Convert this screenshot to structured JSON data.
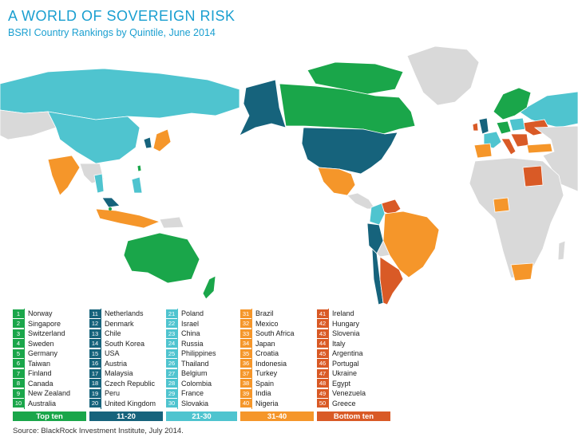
{
  "header": {
    "title": "A WORLD OF SOVEREIGN RISK",
    "subtitle": "BSRI Country Rankings by Quintile, June 2014"
  },
  "colors": {
    "top_ten": "#1aa64a",
    "q11_20": "#16637c",
    "q21_30": "#4fc4cf",
    "q31_40": "#f5962a",
    "bottom_ten": "#d95a26",
    "no_data": "#d9d9d9"
  },
  "legend": [
    {
      "label": "Top ten",
      "color_key": "top_ten",
      "items": [
        {
          "rank": "1",
          "country": "Norway"
        },
        {
          "rank": "2",
          "country": "Singapore"
        },
        {
          "rank": "3",
          "country": "Switzerland"
        },
        {
          "rank": "4",
          "country": "Sweden"
        },
        {
          "rank": "5",
          "country": "Germany"
        },
        {
          "rank": "6",
          "country": "Taiwan"
        },
        {
          "rank": "7",
          "country": "Finland"
        },
        {
          "rank": "8",
          "country": "Canada"
        },
        {
          "rank": "9",
          "country": "New Zealand"
        },
        {
          "rank": "10",
          "country": "Australia"
        }
      ]
    },
    {
      "label": "11-20",
      "color_key": "q11_20",
      "items": [
        {
          "rank": "11",
          "country": "Netherlands"
        },
        {
          "rank": "12",
          "country": "Denmark"
        },
        {
          "rank": "13",
          "country": "Chile"
        },
        {
          "rank": "14",
          "country": "South Korea"
        },
        {
          "rank": "15",
          "country": "USA"
        },
        {
          "rank": "16",
          "country": "Austria"
        },
        {
          "rank": "17",
          "country": "Malaysia"
        },
        {
          "rank": "18",
          "country": "Czech Republic"
        },
        {
          "rank": "19",
          "country": "Peru"
        },
        {
          "rank": "20",
          "country": "United Kingdom"
        }
      ]
    },
    {
      "label": "21-30",
      "color_key": "q21_30",
      "items": [
        {
          "rank": "21",
          "country": "Poland"
        },
        {
          "rank": "22",
          "country": "Israel"
        },
        {
          "rank": "23",
          "country": "China"
        },
        {
          "rank": "24",
          "country": "Russia"
        },
        {
          "rank": "25",
          "country": "Philippines"
        },
        {
          "rank": "26",
          "country": "Thailand"
        },
        {
          "rank": "27",
          "country": "Belgium"
        },
        {
          "rank": "28",
          "country": "Colombia"
        },
        {
          "rank": "29",
          "country": "France"
        },
        {
          "rank": "30",
          "country": "Slovakia"
        }
      ]
    },
    {
      "label": "31-40",
      "color_key": "q31_40",
      "items": [
        {
          "rank": "31",
          "country": "Brazil"
        },
        {
          "rank": "32",
          "country": "Mexico"
        },
        {
          "rank": "33",
          "country": "South Africa"
        },
        {
          "rank": "34",
          "country": "Japan"
        },
        {
          "rank": "35",
          "country": "Croatia"
        },
        {
          "rank": "36",
          "country": "Indonesia"
        },
        {
          "rank": "37",
          "country": "Turkey"
        },
        {
          "rank": "38",
          "country": "Spain"
        },
        {
          "rank": "39",
          "country": "India"
        },
        {
          "rank": "40",
          "country": "Nigeria"
        }
      ]
    },
    {
      "label": "Bottom ten",
      "color_key": "bottom_ten",
      "items": [
        {
          "rank": "41",
          "country": "Ireland"
        },
        {
          "rank": "42",
          "country": "Hungary"
        },
        {
          "rank": "43",
          "country": "Slovenia"
        },
        {
          "rank": "44",
          "country": "Italy"
        },
        {
          "rank": "45",
          "country": "Argentina"
        },
        {
          "rank": "46",
          "country": "Portugal"
        },
        {
          "rank": "47",
          "country": "Ukraine"
        },
        {
          "rank": "48",
          "country": "Egypt"
        },
        {
          "rank": "49",
          "country": "Venezuela"
        },
        {
          "rank": "50",
          "country": "Greece"
        }
      ]
    }
  ],
  "footer": {
    "source": "Source: BlackRock Investment Institute, July 2014."
  }
}
